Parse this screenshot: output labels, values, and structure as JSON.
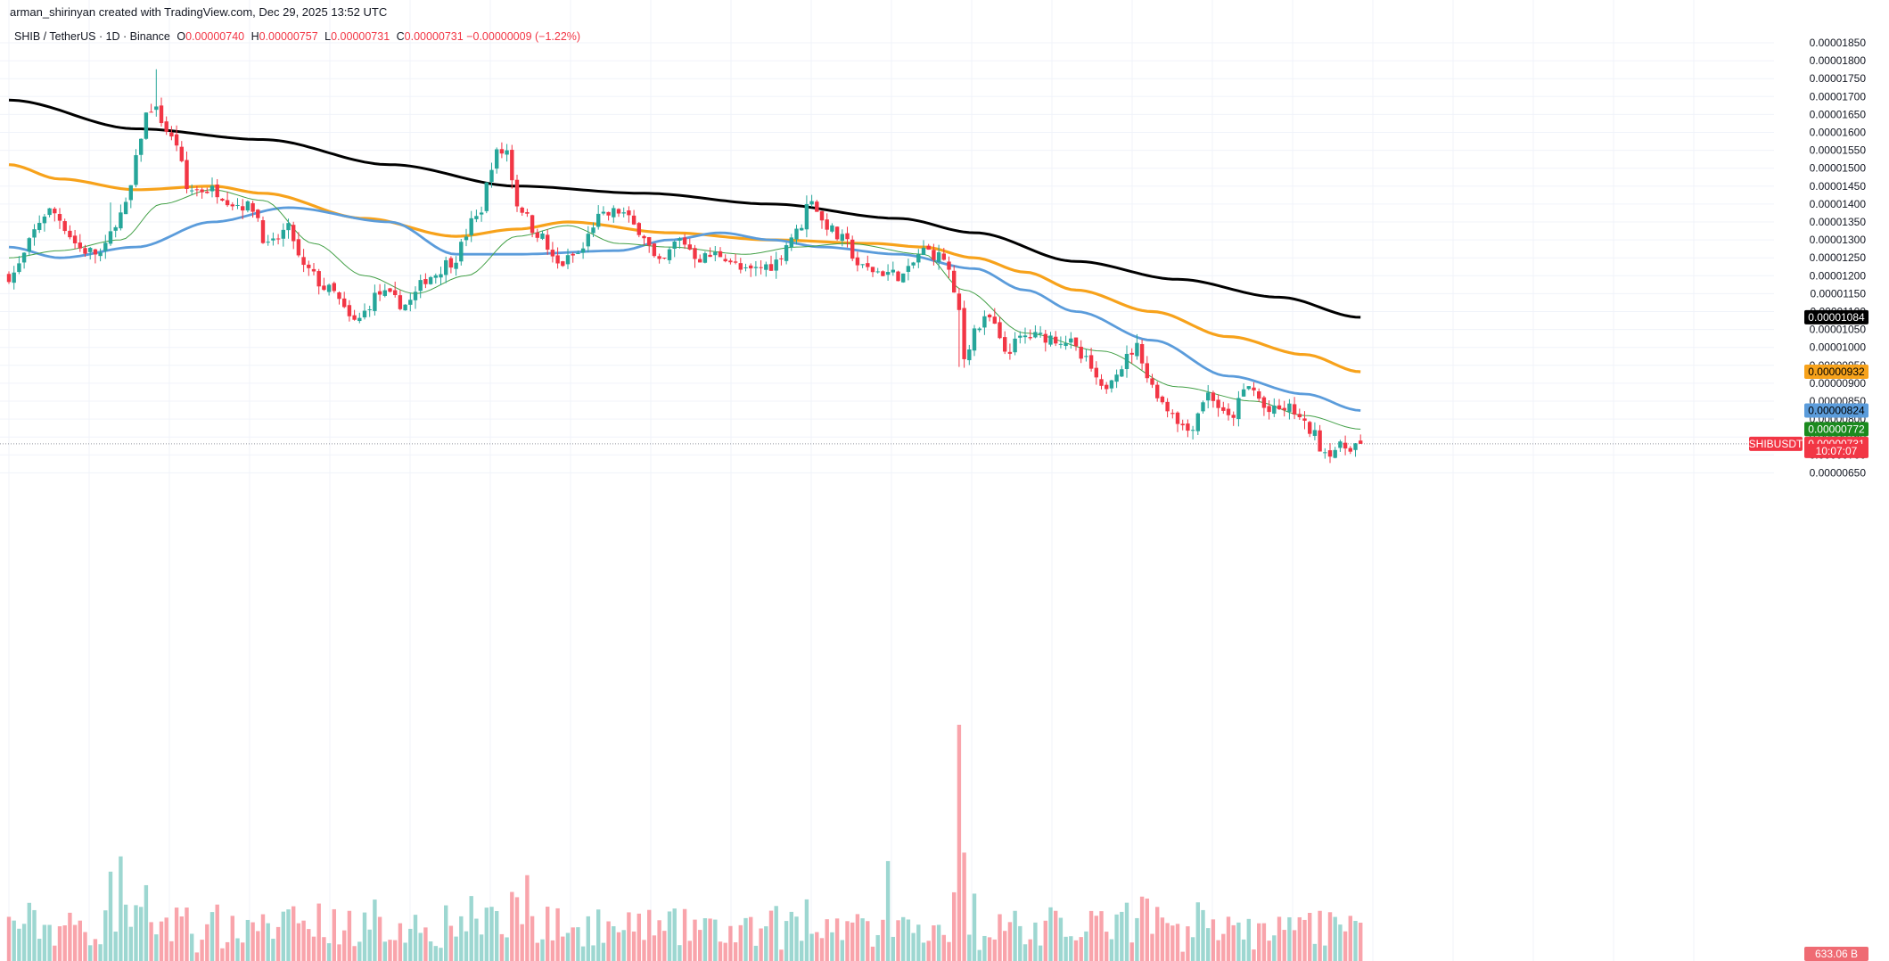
{
  "credit": "arman_shirinyan created with TradingView.com, Dec 29, 2025 13:52 UTC",
  "legend": {
    "symbol": "SHIB / TetherUS · 1D · Binance",
    "o_label": "O",
    "o_value": "0.00000740",
    "h_label": "H",
    "h_value": "0.00000757",
    "l_label": "L",
    "l_value": "0.00000731",
    "c_label": "C",
    "c_value": "0.00000731",
    "change": "−0.00000009 (−1.22%)"
  },
  "colors": {
    "up": "#26a69a",
    "down": "#f23645",
    "ma200": "#000000",
    "ma100": "#f7a21b",
    "ma50": "#5b9cdb",
    "ma20": "#43a047"
  },
  "price_tags": {
    "ma200": "0.00001084",
    "ma100": "0.00000932",
    "ma50": "0.00000824",
    "ma20": "0.00000772",
    "symbol": "SHIBUSDT",
    "last": "0.00000731",
    "countdown": "10:07:07",
    "volume": "633.06 B"
  },
  "chart_data": {
    "type": "candlestick",
    "pair": "SHIBUSDT",
    "timeframe": "1D",
    "y_ticks": [
      "0.00001850",
      "0.00001800",
      "0.00001750",
      "0.00001700",
      "0.00001650",
      "0.00001600",
      "0.00001550",
      "0.00001500",
      "0.00001450",
      "0.00001400",
      "0.00001350",
      "0.00001300",
      "0.00001250",
      "0.00001200",
      "0.00001150",
      "0.00001100",
      "0.00001050",
      "0.00001000",
      "0.00000950",
      "0.00000900",
      "0.00000850",
      "0.00000800",
      "0.00000750",
      "0.00000700",
      "0.00000650"
    ],
    "ylim": [
      6e-06,
      1.92e-05
    ],
    "price_anchors": [
      [
        0,
        12.0
      ],
      [
        8,
        13.8
      ],
      [
        15,
        12.7
      ],
      [
        18,
        12.6
      ],
      [
        22,
        13.7
      ],
      [
        28,
        16.7
      ],
      [
        33,
        15.7
      ],
      [
        35,
        14.4
      ],
      [
        40,
        14.4
      ],
      [
        45,
        14.0
      ],
      [
        48,
        13.9
      ],
      [
        51,
        12.8
      ],
      [
        55,
        13.3
      ],
      [
        58,
        12.2
      ],
      [
        63,
        11.6
      ],
      [
        68,
        10.7
      ],
      [
        73,
        11.5
      ],
      [
        78,
        11.2
      ],
      [
        83,
        12.0
      ],
      [
        87,
        12.4
      ],
      [
        92,
        13.6
      ],
      [
        96,
        15.4
      ],
      [
        98,
        15.5
      ],
      [
        100,
        14.0
      ],
      [
        104,
        13.2
      ],
      [
        108,
        12.3
      ],
      [
        112,
        12.6
      ],
      [
        116,
        13.6
      ],
      [
        120,
        13.8
      ],
      [
        124,
        13.3
      ],
      [
        128,
        12.3
      ],
      [
        132,
        13.0
      ],
      [
        136,
        12.5
      ],
      [
        140,
        12.6
      ],
      [
        145,
        12.1
      ],
      [
        150,
        12.3
      ],
      [
        155,
        13.2
      ],
      [
        158,
        14.2
      ],
      [
        160,
        13.5
      ],
      [
        164,
        13.0
      ],
      [
        168,
        12.2
      ],
      [
        172,
        12.1
      ],
      [
        176,
        12.0
      ],
      [
        180,
        12.7
      ],
      [
        184,
        12.5
      ],
      [
        187,
        11.0
      ],
      [
        188,
        9.7
      ],
      [
        190,
        10.5
      ],
      [
        193,
        10.8
      ],
      [
        196,
        9.9
      ],
      [
        200,
        10.3
      ],
      [
        204,
        10.3
      ],
      [
        208,
        10.2
      ],
      [
        212,
        9.6
      ],
      [
        215,
        8.8
      ],
      [
        218,
        9.4
      ],
      [
        222,
        10.0
      ],
      [
        225,
        8.9
      ],
      [
        228,
        8.3
      ],
      [
        232,
        7.7
      ],
      [
        236,
        8.7
      ],
      [
        240,
        8.0
      ],
      [
        244,
        8.9
      ],
      [
        248,
        8.2
      ],
      [
        252,
        8.3
      ],
      [
        256,
        7.7
      ],
      [
        259,
        7.1
      ],
      [
        262,
        7.2
      ],
      [
        266,
        7.31
      ]
    ],
    "ma_anchors": {
      "ma200": [
        [
          0,
          16.9
        ],
        [
          25,
          16.1
        ],
        [
          50,
          15.8
        ],
        [
          75,
          15.1
        ],
        [
          100,
          14.5
        ],
        [
          125,
          14.3
        ],
        [
          150,
          14.0
        ],
        [
          175,
          13.6
        ],
        [
          190,
          13.2
        ],
        [
          210,
          12.4
        ],
        [
          230,
          11.9
        ],
        [
          250,
          11.4
        ],
        [
          266,
          10.84
        ]
      ],
      "ma100": [
        [
          0,
          15.1
        ],
        [
          10,
          14.7
        ],
        [
          25,
          14.4
        ],
        [
          40,
          14.5
        ],
        [
          50,
          14.3
        ],
        [
          70,
          13.6
        ],
        [
          88,
          13.1
        ],
        [
          100,
          13.3
        ],
        [
          110,
          13.5
        ],
        [
          130,
          13.2
        ],
        [
          150,
          13.0
        ],
        [
          170,
          12.9
        ],
        [
          180,
          12.8
        ],
        [
          190,
          12.5
        ],
        [
          200,
          12.1
        ],
        [
          210,
          11.6
        ],
        [
          225,
          11.0
        ],
        [
          240,
          10.3
        ],
        [
          255,
          9.8
        ],
        [
          266,
          9.32
        ]
      ],
      "ma50": [
        [
          0,
          12.8
        ],
        [
          10,
          12.5
        ],
        [
          25,
          12.8
        ],
        [
          40,
          13.5
        ],
        [
          55,
          13.9
        ],
        [
          75,
          13.5
        ],
        [
          88,
          12.6
        ],
        [
          100,
          12.6
        ],
        [
          120,
          12.7
        ],
        [
          130,
          13.0
        ],
        [
          140,
          13.2
        ],
        [
          150,
          13.0
        ],
        [
          160,
          12.8
        ],
        [
          175,
          12.6
        ],
        [
          190,
          12.2
        ],
        [
          200,
          11.6
        ],
        [
          210,
          11.0
        ],
        [
          225,
          10.2
        ],
        [
          240,
          9.2
        ],
        [
          255,
          8.7
        ],
        [
          266,
          8.24
        ]
      ],
      "ma20": [
        [
          0,
          12.5
        ],
        [
          10,
          12.7
        ],
        [
          22,
          13.0
        ],
        [
          30,
          14.0
        ],
        [
          40,
          14.4
        ],
        [
          50,
          14.1
        ],
        [
          60,
          12.9
        ],
        [
          70,
          12.0
        ],
        [
          80,
          11.5
        ],
        [
          90,
          12.0
        ],
        [
          100,
          13.1
        ],
        [
          110,
          13.4
        ],
        [
          120,
          12.9
        ],
        [
          130,
          12.8
        ],
        [
          145,
          12.6
        ],
        [
          155,
          12.8
        ],
        [
          165,
          12.9
        ],
        [
          180,
          12.6
        ],
        [
          188,
          11.6
        ],
        [
          200,
          10.4
        ],
        [
          215,
          9.9
        ],
        [
          230,
          8.9
        ],
        [
          245,
          8.5
        ],
        [
          255,
          8.1
        ],
        [
          266,
          7.72
        ]
      ]
    },
    "price_unit": "1e-6 USDT",
    "last_close": 7.31e-06,
    "grid": true,
    "volume_panel": true
  }
}
